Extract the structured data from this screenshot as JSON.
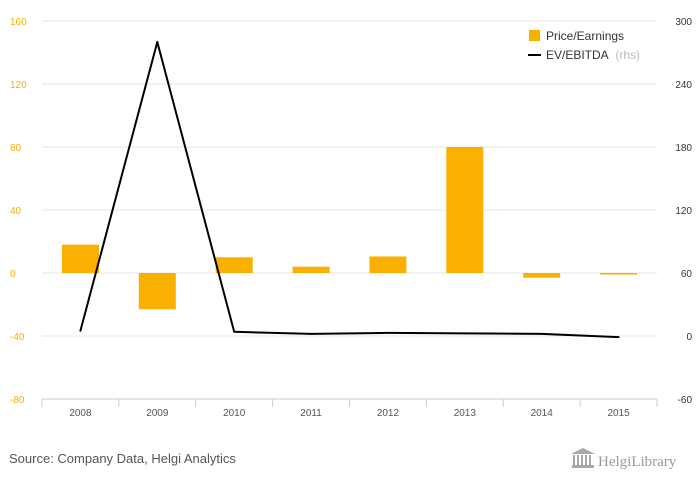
{
  "chart_data": {
    "type": "bar",
    "categories": [
      "2008",
      "2009",
      "2010",
      "2011",
      "2012",
      "2013",
      "2014",
      "2015"
    ],
    "series": [
      {
        "name": "Price/Earnings",
        "type": "bar",
        "axis": "left",
        "color": "#F9B000",
        "values": [
          18,
          -23,
          10,
          4,
          10.5,
          80,
          -3,
          -1
        ]
      },
      {
        "name": "EV/EBITDA",
        "type": "line",
        "axis": "right",
        "color": "#000000",
        "values": [
          5,
          280,
          4,
          2,
          3,
          2.5,
          2,
          -1
        ]
      }
    ],
    "ylim_left": [
      -80,
      160
    ],
    "yticks_left": [
      "160",
      "120",
      "80",
      "40",
      "0",
      "-40",
      "-80"
    ],
    "ylim_right": [
      -60,
      300
    ],
    "yticks_right": [
      "300",
      "240",
      "180",
      "120",
      "60",
      "0",
      "-60"
    ],
    "legend": {
      "position": "top-right",
      "items": [
        {
          "label": "Price/Earnings",
          "suffix": ""
        },
        {
          "label": "EV/EBITDA",
          "suffix": "(rhs)"
        }
      ]
    },
    "grid": "horizontal"
  },
  "footer": {
    "source": "Source: Company Data, Helgi Analytics",
    "brand": "HelgiLibrary"
  }
}
